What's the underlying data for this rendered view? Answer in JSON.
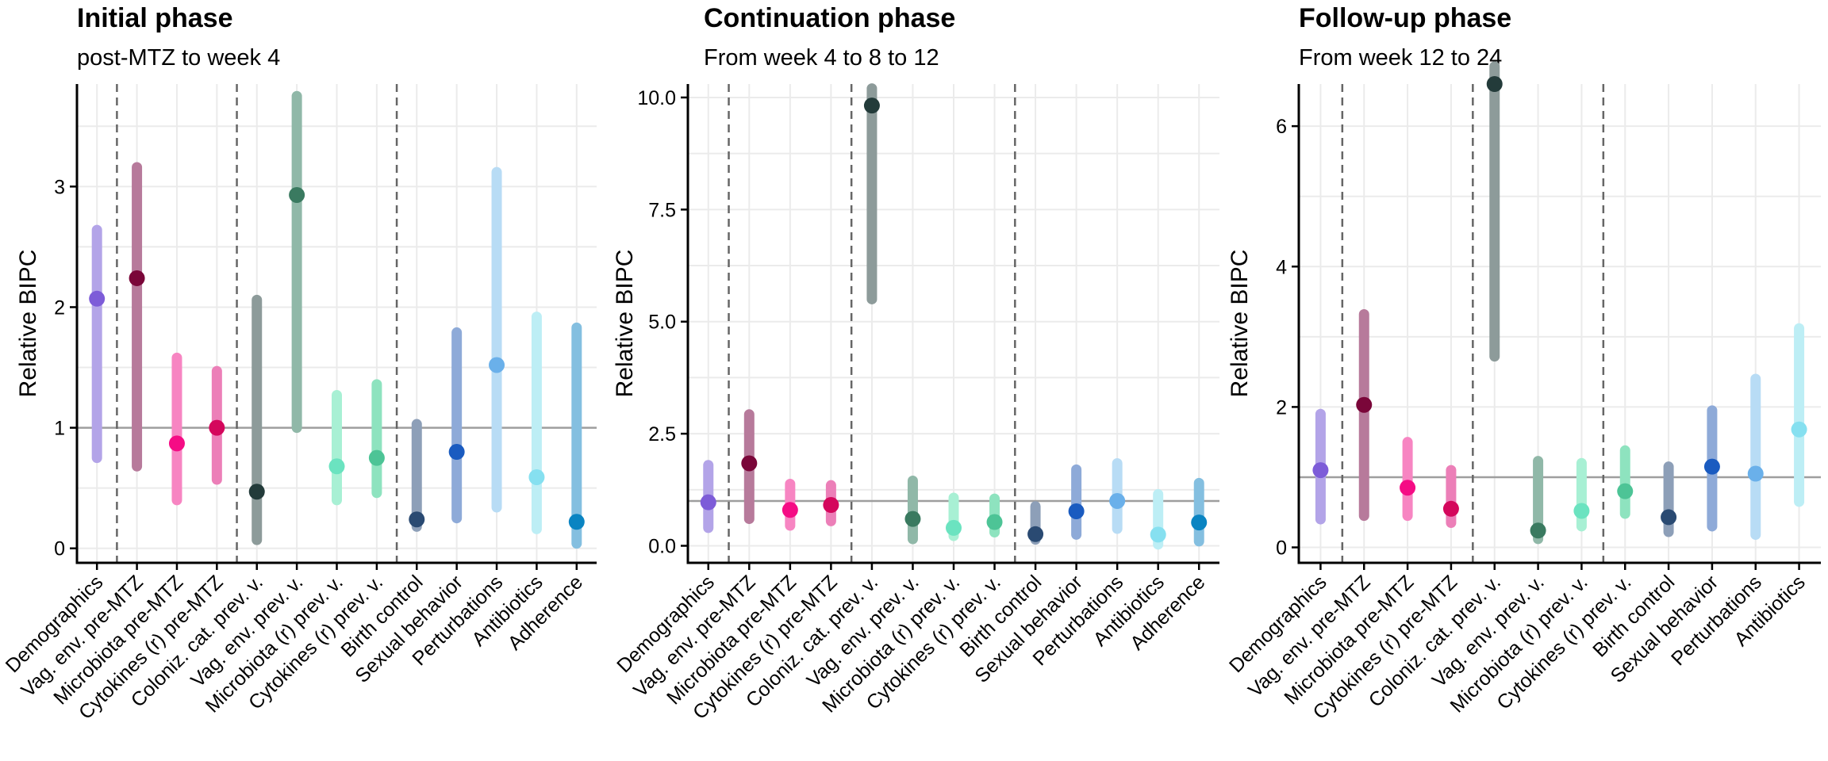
{
  "figure": {
    "ylabel": "Relative BIPC"
  },
  "chart_data": [
    {
      "type": "scatter",
      "error_bars": true,
      "title": "Initial phase",
      "subtitle": "post-MTZ to week 4",
      "ylabel": "Relative BIPC",
      "xlabel": "",
      "ylim": [
        -0.12,
        3.85
      ],
      "yticks": [
        0,
        1,
        2,
        3
      ],
      "ytick_labels": [
        "0",
        "1",
        "2",
        "3"
      ],
      "reference_line": 1,
      "grid": true,
      "group_dividers_after": [
        1,
        4,
        8
      ],
      "categories": [
        "Demographics",
        "Vag. env. pre-MTZ",
        "Microbiota pre-MTZ",
        "Cytokines (r) pre-MTZ",
        "Coloniz. cat. prev. v.",
        "Vag. env. prev. v.",
        "Microbiota (r) prev. v.",
        "Cytokines (r) prev. v.",
        "Birth control",
        "Sexual behavior",
        "Perturbations",
        "Antibiotics",
        "Adherence"
      ],
      "values": [
        2.07,
        2.24,
        0.87,
        1.0,
        0.47,
        2.93,
        0.68,
        0.75,
        0.24,
        0.8,
        1.52,
        0.59,
        0.22
      ],
      "lower": [
        0.75,
        0.68,
        0.4,
        0.57,
        0.07,
        1.0,
        0.4,
        0.46,
        0.18,
        0.25,
        0.34,
        0.16,
        0.04
      ],
      "upper": [
        2.64,
        3.16,
        1.58,
        1.47,
        2.06,
        3.75,
        1.27,
        1.36,
        1.03,
        1.79,
        3.12,
        1.92,
        1.83
      ]
    },
    {
      "type": "scatter",
      "error_bars": true,
      "title": "Continuation phase",
      "subtitle": "From week 4 to 8 to 12",
      "ylabel": "Relative BIPC",
      "xlabel": "",
      "ylim": [
        -0.38,
        10.3
      ],
      "yticks": [
        0,
        2.5,
        5,
        7.5,
        10
      ],
      "ytick_labels": [
        "0.0",
        "2.5",
        "5.0",
        "7.5",
        "10.0"
      ],
      "reference_line": 1,
      "grid": true,
      "group_dividers_after": [
        1,
        4,
        8
      ],
      "categories": [
        "Demographics",
        "Vag. env. pre-MTZ",
        "Microbiota pre-MTZ",
        "Cytokines (r) pre-MTZ",
        "Coloniz. cat. prev. v.",
        "Vag. env. prev. v.",
        "Microbiota (r) prev. v.",
        "Cytokines (r) prev. v.",
        "Birth control",
        "Sexual behavior",
        "Perturbations",
        "Antibiotics",
        "Adherence"
      ],
      "values": [
        0.97,
        1.84,
        0.8,
        0.91,
        9.82,
        0.6,
        0.4,
        0.53,
        0.26,
        0.77,
        1.0,
        0.25,
        0.52
      ],
      "lower": [
        0.4,
        0.6,
        0.45,
        0.55,
        5.5,
        0.15,
        0.22,
        0.3,
        0.14,
        0.25,
        0.38,
        0.03,
        0.1
      ],
      "upper": [
        1.8,
        2.93,
        1.38,
        1.35,
        10.2,
        1.45,
        1.07,
        1.05,
        0.88,
        1.7,
        1.84,
        1.15,
        1.4
      ]
    },
    {
      "type": "scatter",
      "error_bars": true,
      "title": "Follow-up phase",
      "subtitle": "From week 12 to 24",
      "ylabel": "Relative BIPC",
      "xlabel": "",
      "ylim": [
        -0.22,
        6.6
      ],
      "yticks": [
        0,
        2,
        4,
        6
      ],
      "ytick_labels": [
        "0",
        "2",
        "4",
        "6"
      ],
      "reference_line": 1,
      "grid": true,
      "group_dividers_after": [
        1,
        4,
        7
      ],
      "categories": [
        "Demographics",
        "Vag. env. pre-MTZ",
        "Microbiota pre-MTZ",
        "Cytokines (r) pre-MTZ",
        "Coloniz. cat. prev. v.",
        "Vag. env. prev. v.",
        "Microbiota (r) prev. v.",
        "Cytokines (r) prev. v.",
        "Birth control",
        "Sexual behavior",
        "Perturbations",
        "Antibiotics"
      ],
      "values": [
        1.1,
        2.03,
        0.85,
        0.55,
        6.6,
        0.24,
        0.52,
        0.8,
        0.43,
        1.15,
        1.05,
        1.68
      ],
      "lower": [
        0.4,
        0.45,
        0.45,
        0.35,
        2.72,
        0.12,
        0.3,
        0.48,
        0.22,
        0.3,
        0.18,
        0.65
      ],
      "upper": [
        1.9,
        3.32,
        1.5,
        1.1,
        6.85,
        1.23,
        1.2,
        1.38,
        1.15,
        1.95,
        2.4,
        3.12
      ]
    }
  ],
  "colors": {
    "bars": [
      "#b3a4e8",
      "#b77a9b",
      "#f785c2",
      "#ec7fb8",
      "#8d9b9a",
      "#90b8a8",
      "#a8f0d4",
      "#8ee3bf",
      "#8d9fb8",
      "#8eaad8",
      "#b8dcf5",
      "#bdeef5",
      "#84bfe0"
    ],
    "points": [
      "#7d5cd8",
      "#7a0639",
      "#f50c85",
      "#d4075c",
      "#233b3a",
      "#3a7a60",
      "#6be3c0",
      "#4dc496",
      "#2a4a72",
      "#1a5bc0",
      "#6ab0ea",
      "#86e0f0",
      "#0a84c2"
    ],
    "reference": "#9e9e9e",
    "grid": "#ebebeb",
    "divider": "#666666",
    "text": "#000000"
  }
}
